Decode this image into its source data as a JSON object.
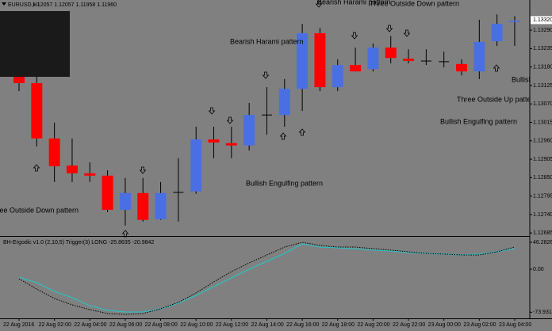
{
  "header": {
    "symbol": "EURUSD,H1",
    "prices": "1.12057 1.12057 1.11958 1.11960"
  },
  "chart_data": [
    {
      "type": "candlestick",
      "categories": [
        "22 Aug 2016",
        null,
        "22 Aug 02:00",
        null,
        "22 Aug 04:00",
        null,
        "22 Aug 06:00",
        null,
        "22 Aug 08:00",
        null,
        "22 Aug 10:00",
        null,
        "22 Aug 12:00",
        null,
        "22 Aug 14:00",
        null,
        "22 Aug 16:00",
        null,
        "22 Aug 18:00",
        null,
        "22 Aug 20:00",
        null,
        "22 Aug 22:00",
        null,
        "23 Aug 00:00",
        null,
        "23 Aug 02:00",
        null,
        "23 Aug 04:00"
      ],
      "candles": [
        {
          "open": 1.13155,
          "high": 1.13191,
          "low": 1.13108,
          "close": 1.13132
        },
        {
          "open": 1.13132,
          "high": 1.13155,
          "low": 1.12943,
          "close": 1.12967
        },
        {
          "open": 1.12967,
          "high": 1.13014,
          "low": 1.12837,
          "close": 1.12884
        },
        {
          "open": 1.12886,
          "high": 1.12967,
          "low": 1.12837,
          "close": 1.12863
        },
        {
          "open": 1.12863,
          "high": 1.12896,
          "low": 1.12837,
          "close": 1.12856
        },
        {
          "open": 1.12856,
          "high": 1.12872,
          "low": 1.12747,
          "close": 1.12754
        },
        {
          "open": 1.12754,
          "high": 1.12849,
          "low": 1.12707,
          "close": 1.12804
        },
        {
          "open": 1.12804,
          "high": 1.12849,
          "low": 1.12719,
          "close": 1.12724
        },
        {
          "open": 1.12726,
          "high": 1.12837,
          "low": 1.12724,
          "close": 1.12804
        },
        {
          "open": 1.12806,
          "high": 1.12908,
          "low": 1.12719,
          "close": 1.12806
        },
        {
          "open": 1.12809,
          "high": 1.13002,
          "low": 1.12802,
          "close": 1.12964
        },
        {
          "open": 1.12964,
          "high": 1.13002,
          "low": 1.12908,
          "close": 1.12955
        },
        {
          "open": 1.12953,
          "high": 1.13002,
          "low": 1.12908,
          "close": 1.12946
        },
        {
          "open": 1.12946,
          "high": 1.13073,
          "low": 1.12931,
          "close": 1.13037
        },
        {
          "open": 1.13037,
          "high": 1.1312,
          "low": 1.12978,
          "close": 1.13037
        },
        {
          "open": 1.13037,
          "high": 1.13144,
          "low": 1.13002,
          "close": 1.13115
        },
        {
          "open": 1.13115,
          "high": 1.13309,
          "low": 1.13049,
          "close": 1.13281
        },
        {
          "open": 1.13281,
          "high": 1.13297,
          "low": 1.13108,
          "close": 1.1312
        },
        {
          "open": 1.1312,
          "high": 1.13203,
          "low": 1.13108,
          "close": 1.13186
        },
        {
          "open": 1.13186,
          "high": 1.13238,
          "low": 1.13167,
          "close": 1.13167
        },
        {
          "open": 1.13174,
          "high": 1.1325,
          "low": 1.13167,
          "close": 1.13238
        },
        {
          "open": 1.13238,
          "high": 1.13273,
          "low": 1.13191,
          "close": 1.13207
        },
        {
          "open": 1.13205,
          "high": 1.13233,
          "low": 1.13191,
          "close": 1.13198
        },
        {
          "open": 1.13198,
          "high": 1.13233,
          "low": 1.13186,
          "close": 1.13198
        },
        {
          "open": 1.13196,
          "high": 1.13226,
          "low": 1.13179,
          "close": 1.13196
        },
        {
          "open": 1.13189,
          "high": 1.13203,
          "low": 1.13155,
          "close": 1.13167
        },
        {
          "open": 1.13167,
          "high": 1.13321,
          "low": 1.13144,
          "close": 1.13255
        },
        {
          "open": 1.13257,
          "high": 1.13337,
          "low": 1.13243,
          "close": 1.13309
        },
        {
          "open": 1.13314,
          "high": 1.13332,
          "low": 1.13243,
          "close": 1.13318
        }
      ],
      "up_color": "#4a6fe3",
      "down_color": "#ff0000",
      "doji_color": "#000000",
      "ylim": [
        1.12676,
        1.1338
      ],
      "yticks": [
        {
          "value": 1.1329,
          "label": "1.13290"
        },
        {
          "value": 1.13235,
          "label": "1.13235"
        },
        {
          "value": 1.1318,
          "label": "1.13180"
        },
        {
          "value": 1.13125,
          "label": "1.13125"
        },
        {
          "value": 1.1307,
          "label": "1.13070"
        },
        {
          "value": 1.13015,
          "label": "1.13015"
        },
        {
          "value": 1.1296,
          "label": "1.12960"
        },
        {
          "value": 1.12905,
          "label": "1.12905"
        },
        {
          "value": 1.1285,
          "label": "1.12850"
        },
        {
          "value": 1.12795,
          "label": "1.12795"
        },
        {
          "value": 1.1274,
          "label": "1.12740"
        },
        {
          "value": 1.12685,
          "label": "1.12685"
        }
      ],
      "last_price": {
        "value": 1.1332,
        "label": "1.13320"
      },
      "annotations": [
        "Bearish Harami pattern",
        "Bearish Harami pattern",
        "Three Outside Down pattern",
        "Bullish Engulfing pattern",
        "Three Outside Down pattern",
        "Three Outside Up pattern",
        "Bullish Engulfing pattern",
        "Bullish Engulfing pattern"
      ]
    },
    {
      "type": "line",
      "title": "BH-Ergodic v1.0 (2,10,5) Trigger(3) LONG -25.8635 -20.9842",
      "series": [
        {
          "color": "#20c8c8",
          "style": "solid",
          "values": [
            -13.6,
            -23.1,
            -38.1,
            -49.0,
            -62.6,
            -70.7,
            -73.5,
            -73.5,
            -68.0,
            -58.5,
            -44.9,
            -29.9,
            -15.0,
            0,
            13.6,
            27.2,
            43.5,
            38.1,
            36.7,
            35.4,
            32.7,
            31.3,
            28.6,
            27.2,
            25.9,
            24.5,
            25.9,
            29.9,
            35.4
          ]
        },
        {
          "color": "#000000",
          "style": "dotted",
          "values": [
            -16.3,
            -34.0,
            -50.3,
            -61.2,
            -69.4,
            -76.2,
            -77.6,
            -76.2,
            -68.0,
            -57.1,
            -40.8,
            -21.8,
            -4.1,
            10.9,
            24.5,
            38.1,
            46.3,
            40.8,
            38.1,
            38.1,
            35.4,
            32.7,
            29.9,
            27.2,
            25.9,
            24.5,
            24.5,
            29.9,
            38.1
          ]
        }
      ],
      "ylim": [
        -84.4,
        54.4
      ],
      "yticks": [
        {
          "value": 46.2826,
          "label": "46.2826"
        },
        {
          "value": 0,
          "label": "0.00"
        },
        {
          "value": -73.9311,
          "label": "-73.9311"
        }
      ]
    }
  ]
}
